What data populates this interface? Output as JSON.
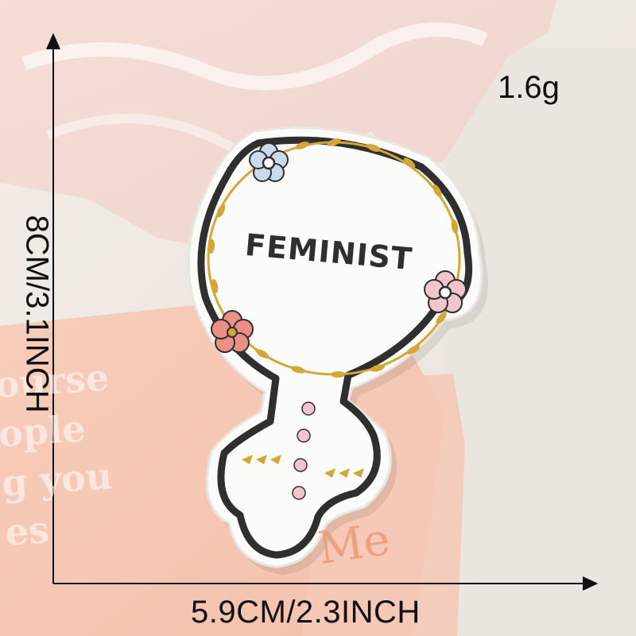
{
  "product": {
    "patch_text": "FEMINIST",
    "weight": "1.6g",
    "height_dimension": "8CM/3.1INCH",
    "width_dimension": "5.9CM/2.3INCH"
  },
  "background_card": {
    "text_lines": [
      "ourse",
      "ople",
      "g you",
      "es"
    ],
    "mark": "Me"
  },
  "colors": {
    "outline": "#2f2f2f",
    "patch_fill": "#fbfbfa",
    "leaf_gold": "#d4a734",
    "flower_blue": "#c9dbea",
    "flower_pink": "#f2c5cc",
    "flower_coral": "#ee8f86"
  }
}
